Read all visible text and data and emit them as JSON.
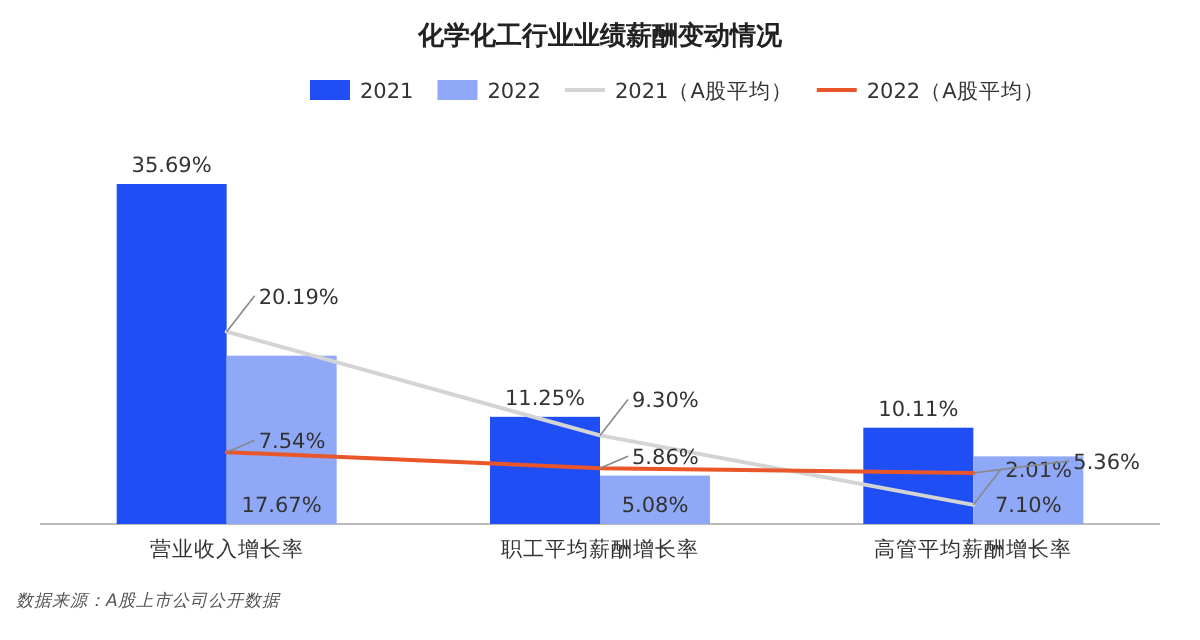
{
  "chart_data": {
    "type": "bar",
    "title": "化学化工行业业绩薪酬变动情况",
    "categories": [
      "营业收入增长率",
      "职工平均薪酬增长率",
      "高管平均薪酬增长率"
    ],
    "series": [
      {
        "name": "2021",
        "color": "#1f4ef5",
        "values": [
          35.69,
          11.25,
          10.11
        ],
        "value_labels": [
          "35.69%",
          "11.25%",
          "10.11%"
        ]
      },
      {
        "name": "2022",
        "color": "#8fa8f8",
        "values": [
          17.67,
          5.08,
          7.1
        ],
        "value_labels": [
          "17.67%",
          "5.08%",
          "7.10%"
        ]
      },
      {
        "name": "2021（A股平均）",
        "type": "line",
        "color": "#d4d4d4",
        "values": [
          20.19,
          9.3,
          2.01
        ],
        "value_labels": [
          "20.19%",
          "9.30%",
          "2.01%"
        ]
      },
      {
        "name": "2022（A股平均）",
        "type": "line",
        "color": "#e8562a",
        "values": [
          7.54,
          5.86,
          5.36
        ],
        "value_labels": [
          "7.54%",
          "5.86%",
          "5.36%"
        ]
      }
    ],
    "legend": "top",
    "marker": "none",
    "annotations": [
      "数据来源：A股上市公司公开数据"
    ]
  }
}
